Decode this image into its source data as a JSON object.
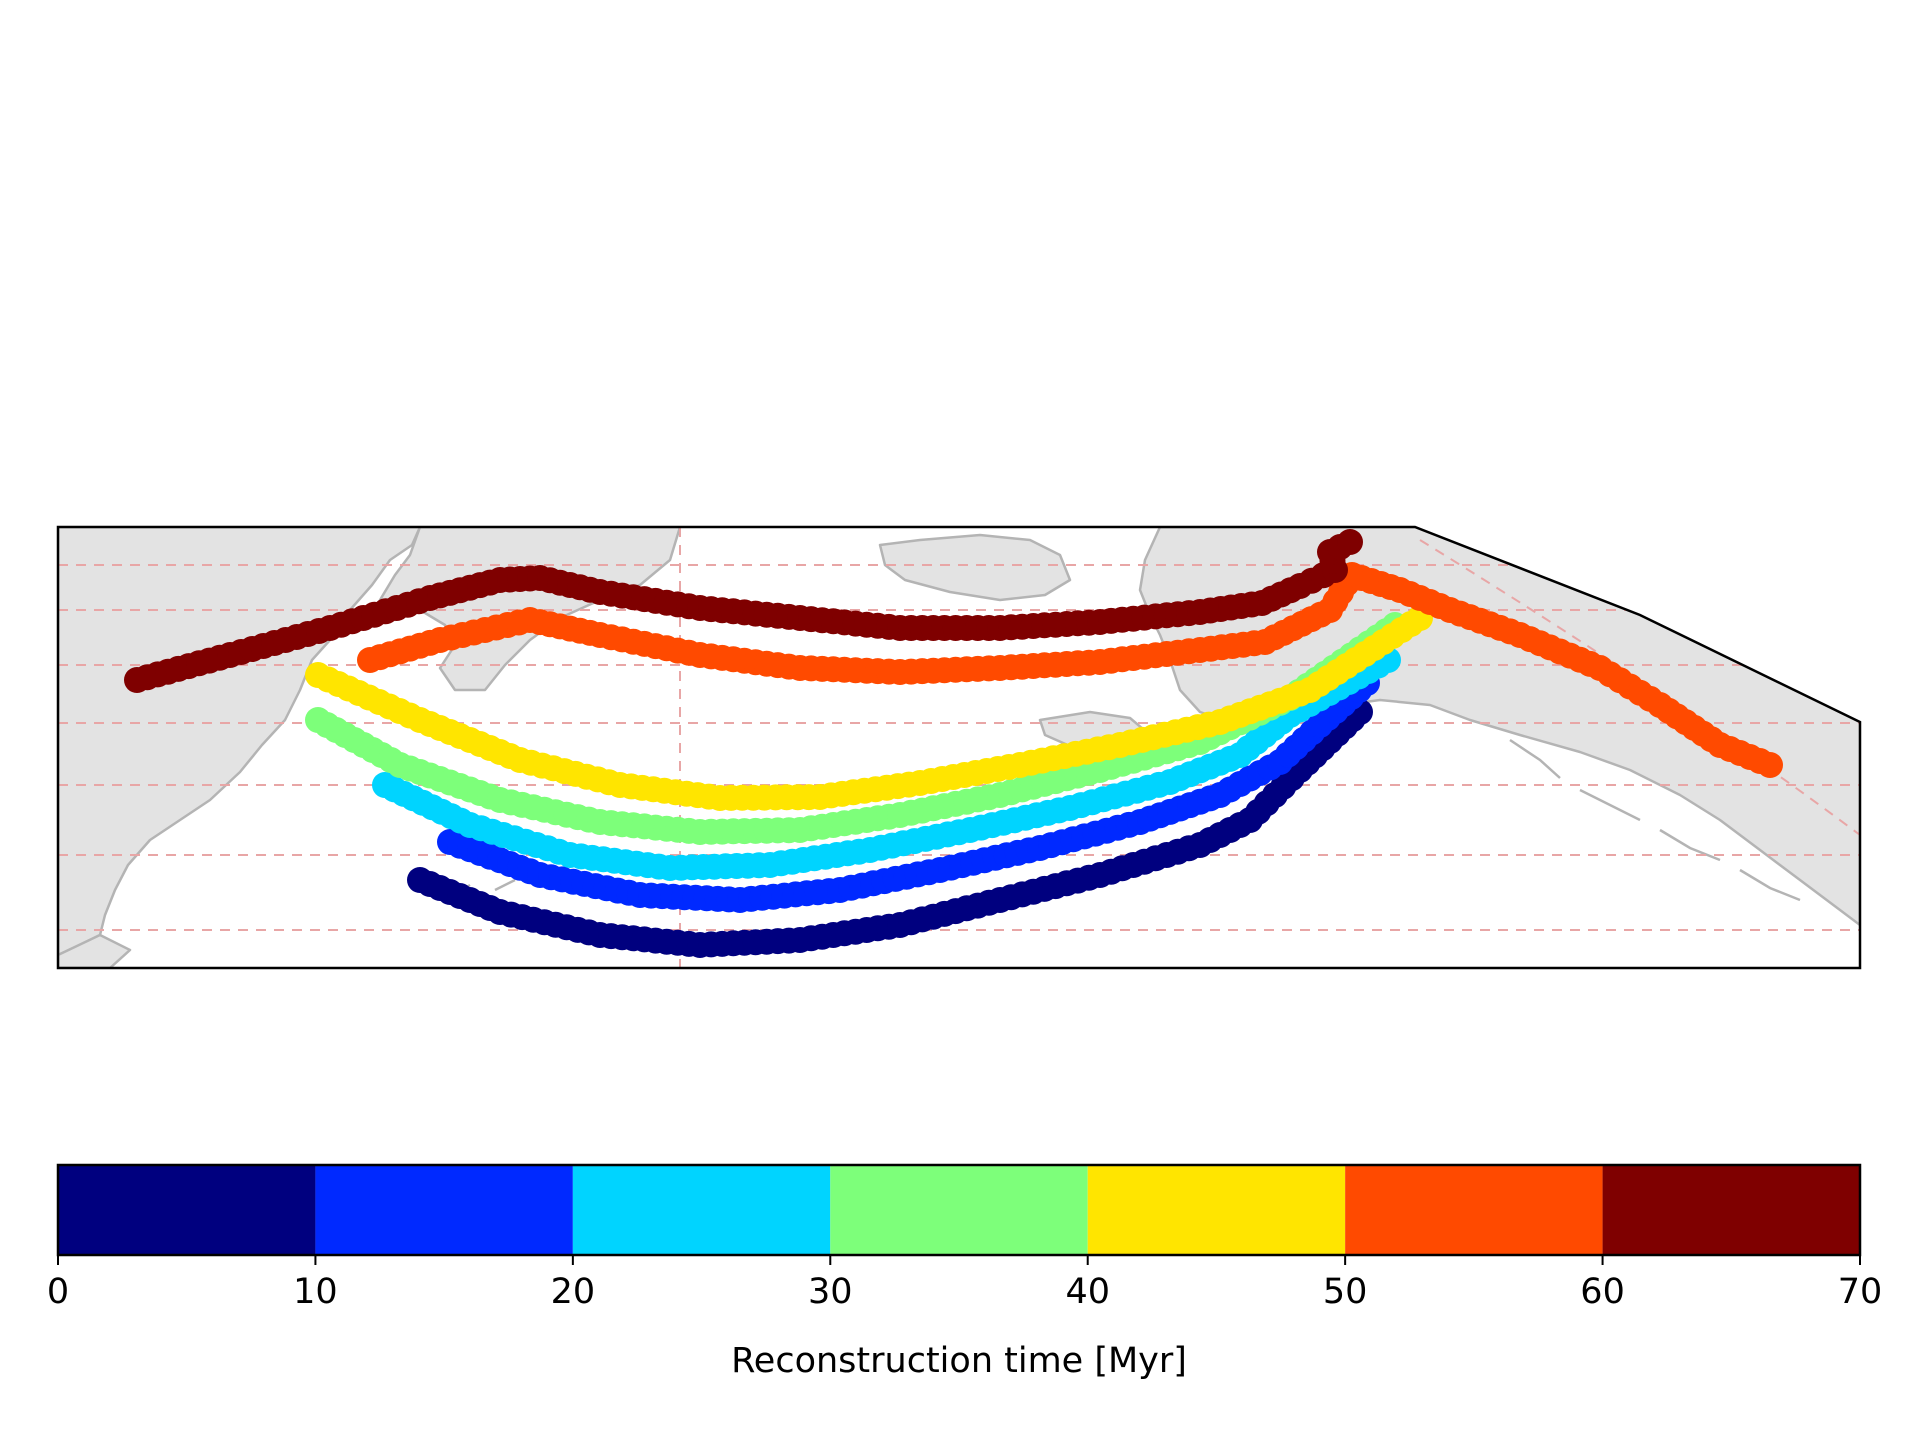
{
  "chart_data": {
    "type": "map-scatter",
    "colorbar": {
      "label": "Reconstruction time [Myr]",
      "ticks": [
        "0",
        "10",
        "20",
        "30",
        "40",
        "50",
        "60",
        "70"
      ],
      "range": [
        0,
        70
      ],
      "bins": [
        {
          "from": 0,
          "to": 10,
          "color": "#00007f"
        },
        {
          "from": 10,
          "to": 20,
          "color": "#0029ff"
        },
        {
          "from": 20,
          "to": 30,
          "color": "#00d4ff"
        },
        {
          "from": 30,
          "to": 40,
          "color": "#7dff7a"
        },
        {
          "from": 40,
          "to": 50,
          "color": "#ffe500"
        },
        {
          "from": 50,
          "to": 60,
          "color": "#ff4a00"
        },
        {
          "from": 60,
          "to": 70,
          "color": "#7f0000"
        }
      ]
    },
    "series": [
      {
        "time_bin": "0-10",
        "color": "#00007f"
      },
      {
        "time_bin": "10-20",
        "color": "#0029ff"
      },
      {
        "time_bin": "20-30",
        "color": "#00d4ff"
      },
      {
        "time_bin": "30-40",
        "color": "#7dff7a"
      },
      {
        "time_bin": "40-50",
        "color": "#ffe500"
      },
      {
        "time_bin": "50-60",
        "color": "#ff4a00"
      },
      {
        "time_bin": "60-70",
        "color": "#7f0000"
      }
    ],
    "land_color": "#e3e3e3",
    "coastline_color": "#b4b4b4",
    "gridline_color": "#e8a6a6",
    "gridlines": "dashed"
  }
}
